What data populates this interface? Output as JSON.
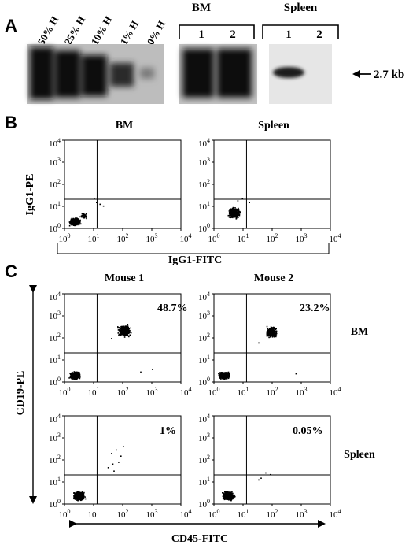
{
  "panel_a": {
    "letter": "A",
    "lane_labels": [
      "50% H",
      "25% H",
      "10% H",
      "1% H",
      "0% H"
    ],
    "group_bm": "BM",
    "group_spleen": "Spleen",
    "bm_lanes": [
      "1",
      "2"
    ],
    "spleen_lanes": [
      "1",
      "2"
    ],
    "band_size": "2.7 kb"
  },
  "panel_b": {
    "letter": "B",
    "col_titles": [
      "BM",
      "Spleen"
    ],
    "ylabel": "IgG1-PE",
    "xlabel": "IgG1-FITC"
  },
  "panel_c": {
    "letter": "C",
    "col_titles": [
      "Mouse 1",
      "Mouse 2"
    ],
    "row_labels": [
      "BM",
      "Spleen"
    ],
    "ylabel": "CD19-PE",
    "xlabel": "CD45-FITC",
    "percentages": [
      "48.7%",
      "23.2%",
      "1%",
      "0.05%"
    ]
  },
  "axis": {
    "tick_labels": [
      "10",
      "10",
      "10",
      "10",
      "10"
    ],
    "exponents": [
      "0",
      "1",
      "2",
      "3",
      "4"
    ]
  }
}
